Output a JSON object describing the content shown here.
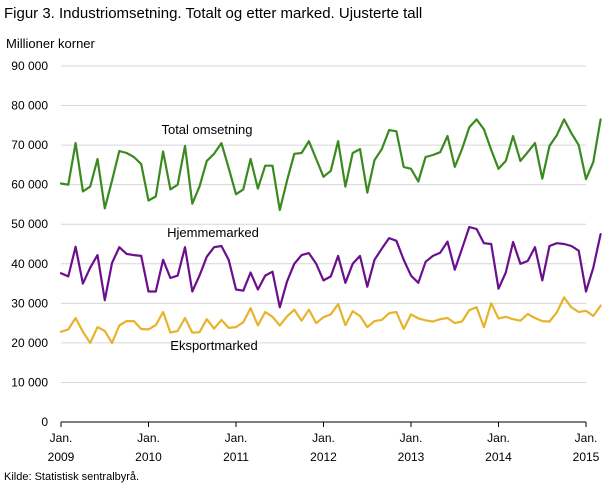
{
  "figure": {
    "title": "Figur 3. Industriomsetning. Totalt og etter marked. Ujusterte tall",
    "source": "Kilde: Statistisk sentralbyrå."
  },
  "chart_data": {
    "type": "line",
    "title": "Figur 3. Industriomsetning. Totalt og etter marked. Ujusterte tall",
    "ylabel": "Millioner  korner",
    "xlabel": "",
    "ylim": [
      0,
      90000
    ],
    "yticks": [
      0,
      10000,
      20000,
      30000,
      40000,
      50000,
      60000,
      70000,
      80000,
      90000
    ],
    "ytick_labels": [
      "0",
      "10 000",
      "20 000",
      "30 000",
      "40 000",
      "50 000",
      "60 000",
      "70 000",
      "80 000",
      "90 000"
    ],
    "x_start": "2009-01",
    "x_end": "2015-03",
    "xtick_labels": [
      {
        "month": "Jan.",
        "year": "2009"
      },
      {
        "month": "Jan.",
        "year": "2010"
      },
      {
        "month": "Jan.",
        "year": "2011"
      },
      {
        "month": "Jan.",
        "year": "2012"
      },
      {
        "month": "Jan.",
        "year": "2013"
      },
      {
        "month": "Jan.",
        "year": "2014"
      },
      {
        "month": "Jan.",
        "year": "2015"
      }
    ],
    "grid": true,
    "series": [
      {
        "name": "Total omsetning",
        "color": "#3a8a1f",
        "values": [
          60300,
          60000,
          70500,
          58300,
          59500,
          66500,
          54000,
          61000,
          68500,
          68000,
          67000,
          65200,
          56000,
          57000,
          68400,
          58800,
          60000,
          69800,
          55200,
          59500,
          66000,
          67800,
          70500,
          64200,
          57600,
          58800,
          66500,
          59000,
          64800,
          64800,
          53600,
          61000,
          67800,
          68000,
          71000,
          66500,
          62000,
          63500,
          71000,
          59500,
          68000,
          69000,
          58000,
          66200,
          69000,
          73800,
          73500,
          64500,
          64000,
          60800,
          67000,
          67500,
          68200,
          72300,
          64500,
          69000,
          74500,
          76500,
          74000,
          68800,
          64000,
          66000,
          72300,
          66000,
          68200,
          70500,
          61500,
          69800,
          72500,
          76500,
          73000,
          70000,
          61400,
          65700,
          76500
        ]
      },
      {
        "name": "Hjemmemarked",
        "color": "#6b0f8c",
        "values": [
          37600,
          36800,
          44300,
          35000,
          39000,
          42200,
          30800,
          40200,
          44200,
          42500,
          42200,
          42000,
          33000,
          33000,
          41000,
          36400,
          37000,
          44200,
          33000,
          37000,
          41800,
          44200,
          44500,
          41000,
          33500,
          33200,
          37800,
          33500,
          37000,
          38000,
          29000,
          35500,
          40000,
          42200,
          42700,
          40000,
          35800,
          36800,
          42000,
          35200,
          40000,
          42000,
          34200,
          41000,
          43800,
          46500,
          45800,
          41000,
          37000,
          35200,
          40500,
          42000,
          42800,
          45600,
          38500,
          43800,
          49300,
          48800,
          45200,
          45000,
          33700,
          37800,
          45500,
          40000,
          40700,
          44200,
          35800,
          44500,
          45200,
          45000,
          44500,
          43300,
          33000,
          39000,
          47500
        ]
      },
      {
        "name": "Eksportmarked",
        "color": "#e8b32c",
        "values": [
          22800,
          23400,
          26300,
          22800,
          20000,
          24000,
          23000,
          20000,
          24400,
          25500,
          25500,
          23500,
          23400,
          24500,
          27800,
          22600,
          23000,
          26300,
          22600,
          22700,
          26000,
          23600,
          25800,
          23800,
          24000,
          25200,
          28800,
          24400,
          27800,
          26600,
          24400,
          26700,
          28400,
          25600,
          28400,
          25000,
          26500,
          27200,
          29800,
          24500,
          28000,
          26800,
          24000,
          25500,
          25800,
          27500,
          27800,
          23500,
          27200,
          26200,
          25700,
          25400,
          26000,
          26300,
          25000,
          25400,
          28300,
          29000,
          24000,
          30000,
          26200,
          26600,
          26000,
          25600,
          27300,
          26300,
          25500,
          25400,
          27700,
          31500,
          29000,
          27800,
          28100,
          26800,
          29400
        ]
      }
    ],
    "series_labels": [
      "Total omsetning",
      "Hjemmemarked",
      "Eksportmarked"
    ]
  }
}
